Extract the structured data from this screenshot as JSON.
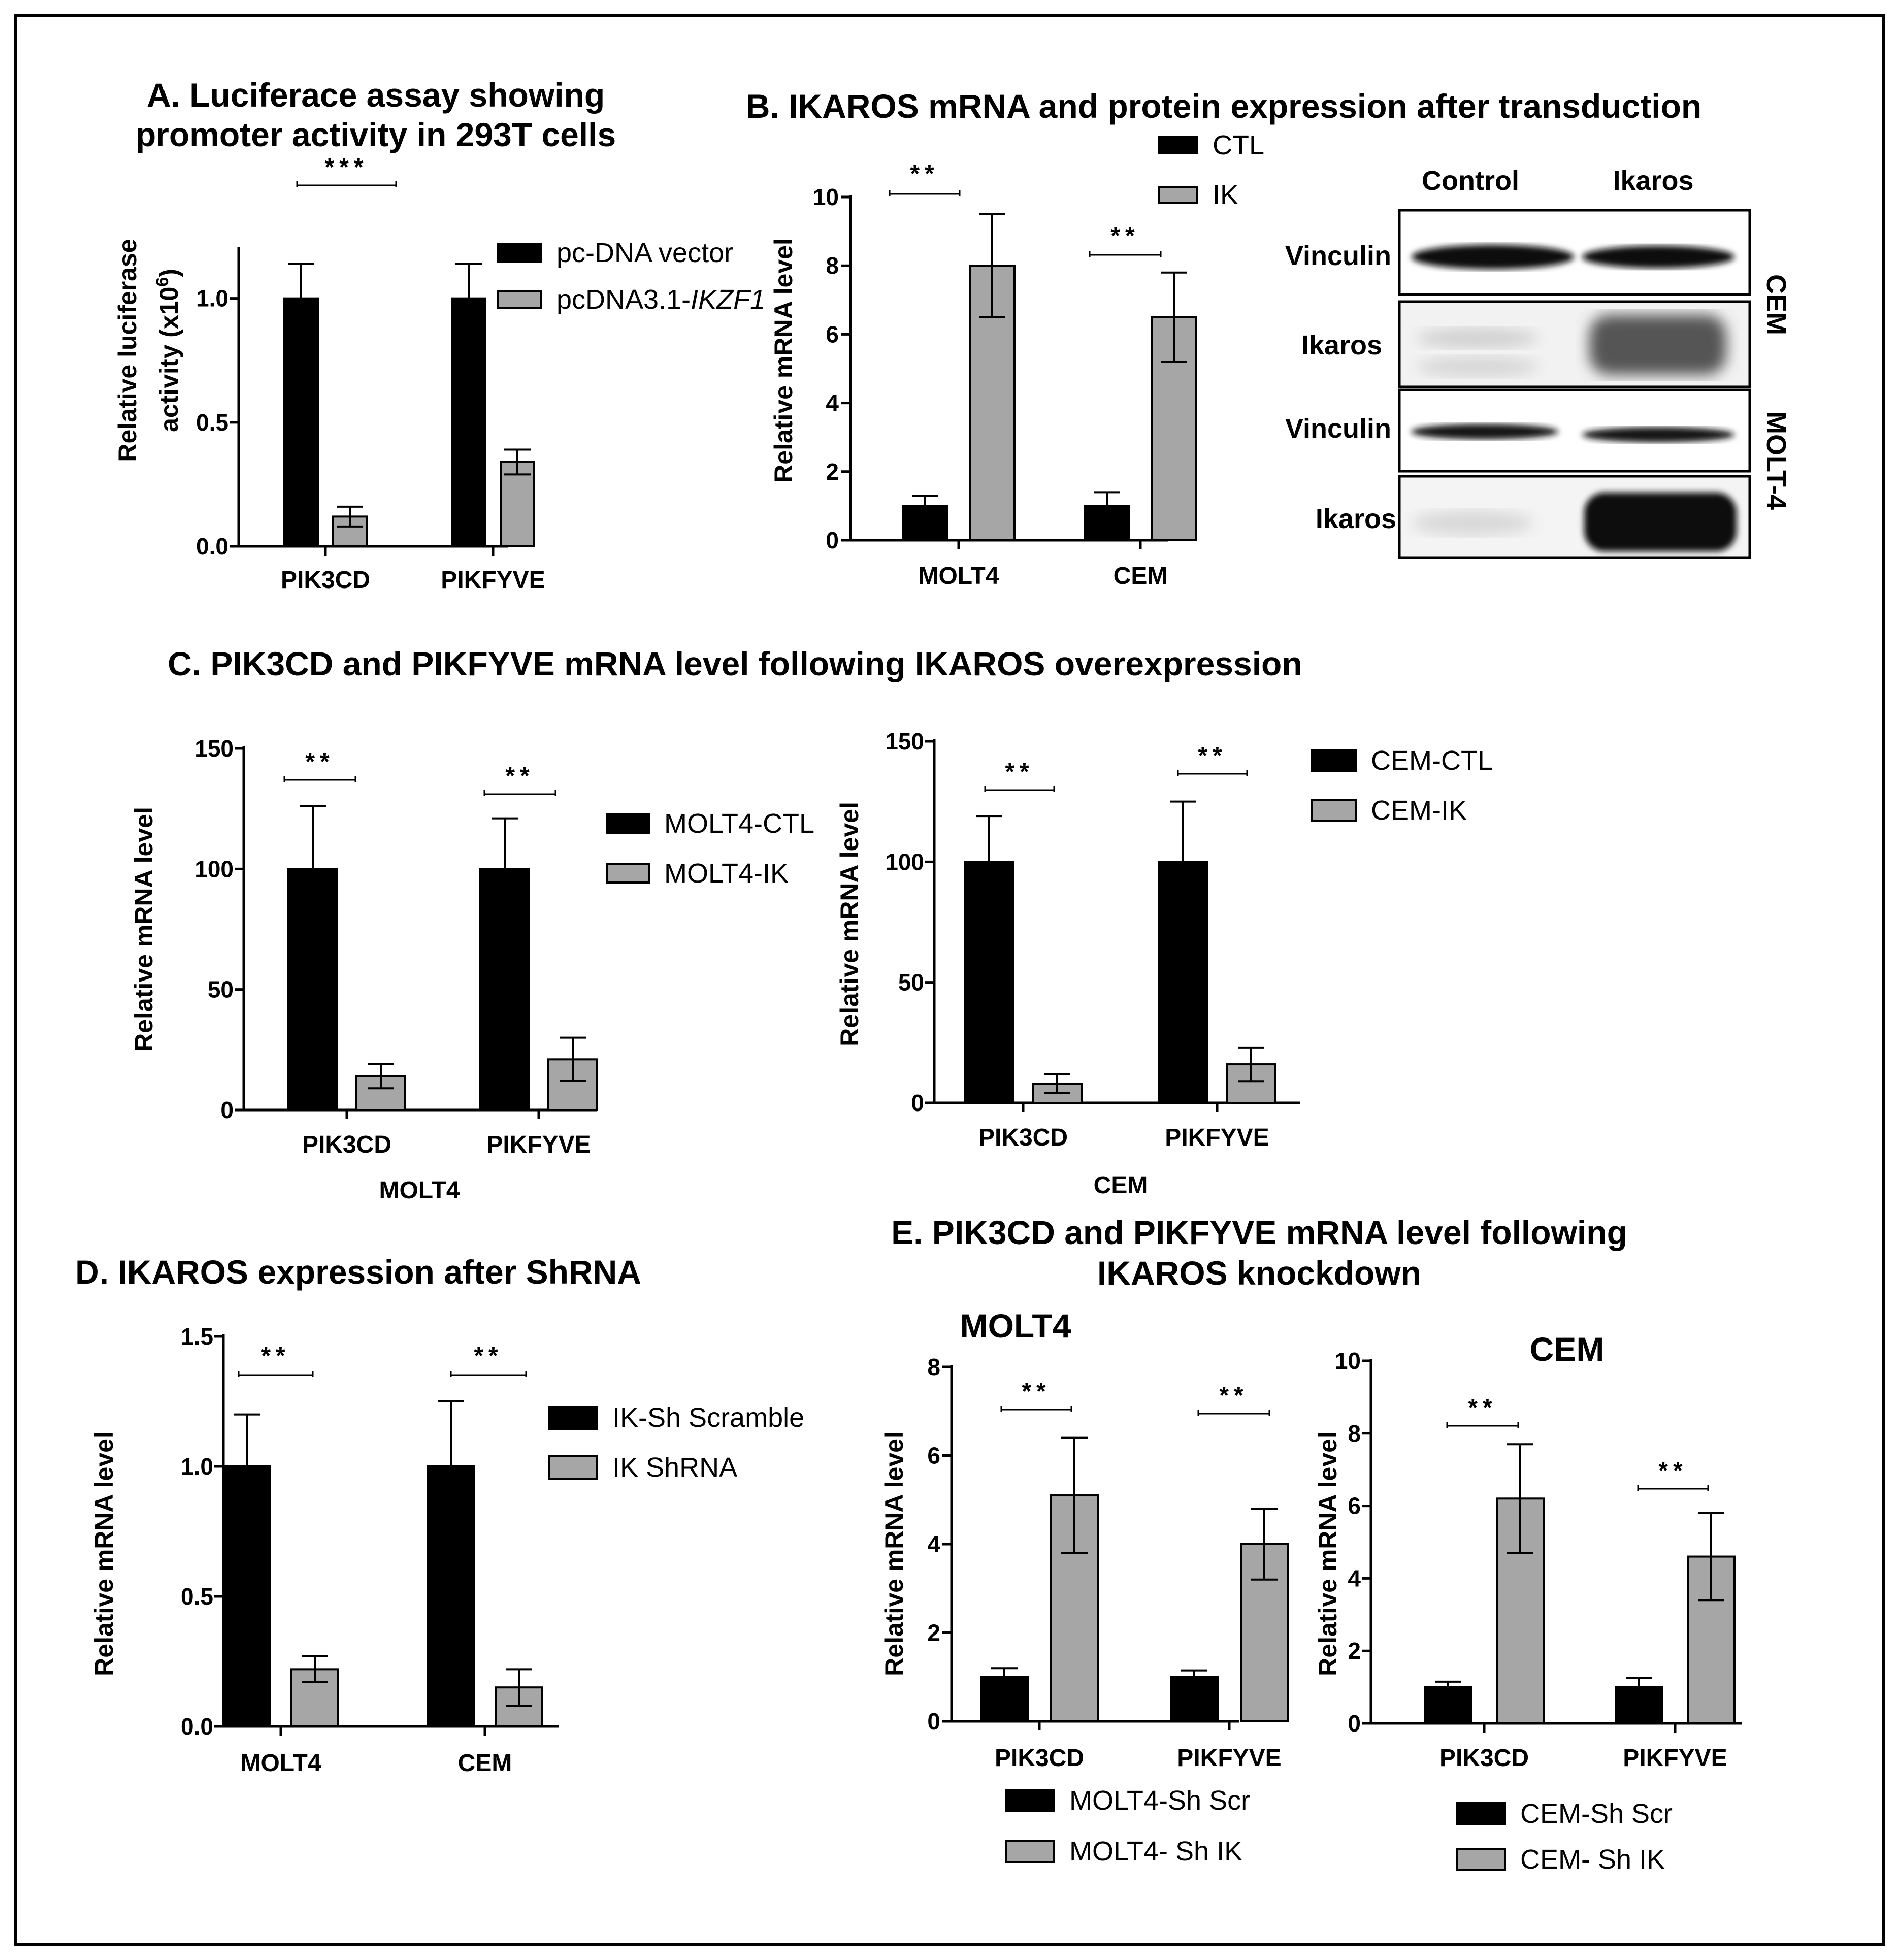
{
  "colors": {
    "ctl": "#000000",
    "ik": "#a6a6a6"
  },
  "chart_data": [
    {
      "id": "A",
      "type": "bar",
      "title": [
        "A. Luciferace assay showing",
        "promoter activity in 293T cells"
      ],
      "ylabel_lines": [
        "Relative luciferase",
        "activity (x10",
        "6",
        ")"
      ],
      "categories": [
        "PIK3CD",
        "PIKFYVE"
      ],
      "ylim": [
        0,
        1.2
      ],
      "yticks": [
        "0.0",
        "0.5",
        "1.0"
      ],
      "ytick_values": [
        0,
        0.5,
        1.0
      ],
      "series": [
        {
          "name": "pc-DNA vector",
          "values": [
            1.0,
            1.0
          ],
          "errors": [
            0.14,
            0.14
          ]
        },
        {
          "name": "pcDNA3.1-",
          "name_italic": "IKZF1",
          "values": [
            0.12,
            0.34
          ],
          "errors": [
            0.04,
            0.05
          ]
        }
      ],
      "significance": [
        "***"
      ]
    },
    {
      "id": "B",
      "type": "bar",
      "title": [
        "B. IKAROS mRNA and protein expression after transduction"
      ],
      "ylabel": "Relative mRNA level",
      "categories": [
        "MOLT4",
        "CEM"
      ],
      "ylim": [
        0,
        10
      ],
      "yticks": [
        "0",
        "2",
        "4",
        "6",
        "8",
        "10"
      ],
      "ytick_values": [
        0,
        2,
        4,
        6,
        8,
        10
      ],
      "series": [
        {
          "name": "CTL",
          "values": [
            1.0,
            1.0
          ],
          "errors": [
            0.3,
            0.4
          ]
        },
        {
          "name": "IK",
          "values": [
            8.0,
            6.5
          ],
          "errors": [
            1.5,
            1.3
          ]
        }
      ],
      "significance": [
        "**",
        "**"
      ]
    },
    {
      "id": "C1",
      "type": "bar",
      "title": [
        "C. PIK3CD and PIKFYVE mRNA level following IKAROS overexpression"
      ],
      "ylabel": "Relative mRNA level",
      "xlabel": "MOLT4",
      "categories": [
        "PIK3CD",
        "PIKFYVE"
      ],
      "ylim": [
        0,
        150
      ],
      "yticks": [
        "0",
        "50",
        "100",
        "150"
      ],
      "ytick_values": [
        0,
        50,
        100,
        150
      ],
      "series": [
        {
          "name": "MOLT4-CTL",
          "values": [
            100,
            100
          ],
          "errors": [
            26,
            21
          ]
        },
        {
          "name": "MOLT4-IK",
          "values": [
            14,
            21
          ],
          "errors": [
            5,
            9
          ]
        }
      ],
      "significance": [
        "**",
        "**"
      ]
    },
    {
      "id": "C2",
      "type": "bar",
      "ylabel": "Relative mRNA level",
      "xlabel": "CEM",
      "categories": [
        "PIK3CD",
        "PIKFYVE"
      ],
      "ylim": [
        0,
        150
      ],
      "yticks": [
        "0",
        "50",
        "100",
        "150"
      ],
      "ytick_values": [
        0,
        50,
        100,
        150
      ],
      "series": [
        {
          "name": "CEM-CTL",
          "values": [
            100,
            100
          ],
          "errors": [
            19,
            25
          ]
        },
        {
          "name": "CEM-IK",
          "values": [
            8,
            16
          ],
          "errors": [
            4,
            7
          ]
        }
      ],
      "significance": [
        "**",
        "**"
      ]
    },
    {
      "id": "D",
      "type": "bar",
      "title": [
        "D. IKAROS expression after ShRNA"
      ],
      "ylabel": "Relative mRNA level",
      "categories": [
        "MOLT4",
        "CEM"
      ],
      "ylim": [
        0,
        1.5
      ],
      "yticks": [
        "0.0",
        "0.5",
        "1.0",
        "1.5"
      ],
      "ytick_values": [
        0,
        0.5,
        1.0,
        1.5
      ],
      "series": [
        {
          "name": "IK-Sh Scramble",
          "values": [
            1.0,
            1.0
          ],
          "errors": [
            0.2,
            0.25
          ]
        },
        {
          "name": "IK ShRNA",
          "values": [
            0.22,
            0.15
          ],
          "errors": [
            0.05,
            0.07
          ]
        }
      ],
      "significance": [
        "**",
        "**"
      ]
    },
    {
      "id": "E1",
      "type": "bar",
      "title": [
        "E. PIK3CD and  PIKFYVE mRNA level following",
        "IKAROS knockdown"
      ],
      "subtitle": "MOLT4",
      "ylabel": "Relative mRNA level",
      "categories": [
        "PIK3CD",
        "PIKFYVE"
      ],
      "ylim": [
        0,
        8
      ],
      "yticks": [
        "0",
        "2",
        "4",
        "6",
        "8"
      ],
      "ytick_values": [
        0,
        2,
        4,
        6,
        8
      ],
      "series": [
        {
          "name": "MOLT4-Sh Scr",
          "values": [
            1.0,
            1.0
          ],
          "errors": [
            0.2,
            0.15
          ]
        },
        {
          "name": "MOLT4- Sh IK",
          "values": [
            5.1,
            4.0
          ],
          "errors": [
            1.3,
            0.8
          ]
        }
      ],
      "significance": [
        "**",
        "**"
      ]
    },
    {
      "id": "E2",
      "type": "bar",
      "subtitle": "CEM",
      "ylabel": "Relative mRNA level",
      "categories": [
        "PIK3CD",
        "PIKFYVE"
      ],
      "ylim": [
        0,
        10
      ],
      "yticks": [
        "0",
        "2",
        "4",
        "6",
        "8",
        "10"
      ],
      "ytick_values": [
        0,
        2,
        4,
        6,
        8,
        10
      ],
      "series": [
        {
          "name": "CEM-Sh Scr",
          "values": [
            1.0,
            1.0
          ],
          "errors": [
            0.15,
            0.25
          ]
        },
        {
          "name": "CEM- Sh IK",
          "values": [
            6.2,
            4.6
          ],
          "errors": [
            1.5,
            1.2
          ]
        }
      ],
      "significance": [
        "**",
        "**"
      ]
    }
  ],
  "blot": {
    "columns": [
      "Control",
      "Ikaros"
    ],
    "rows": [
      "Vinculin",
      "Ikaros",
      "Vinculin",
      "Ikaros"
    ],
    "cell_lines": [
      "CEM",
      "MOLT-4"
    ]
  }
}
